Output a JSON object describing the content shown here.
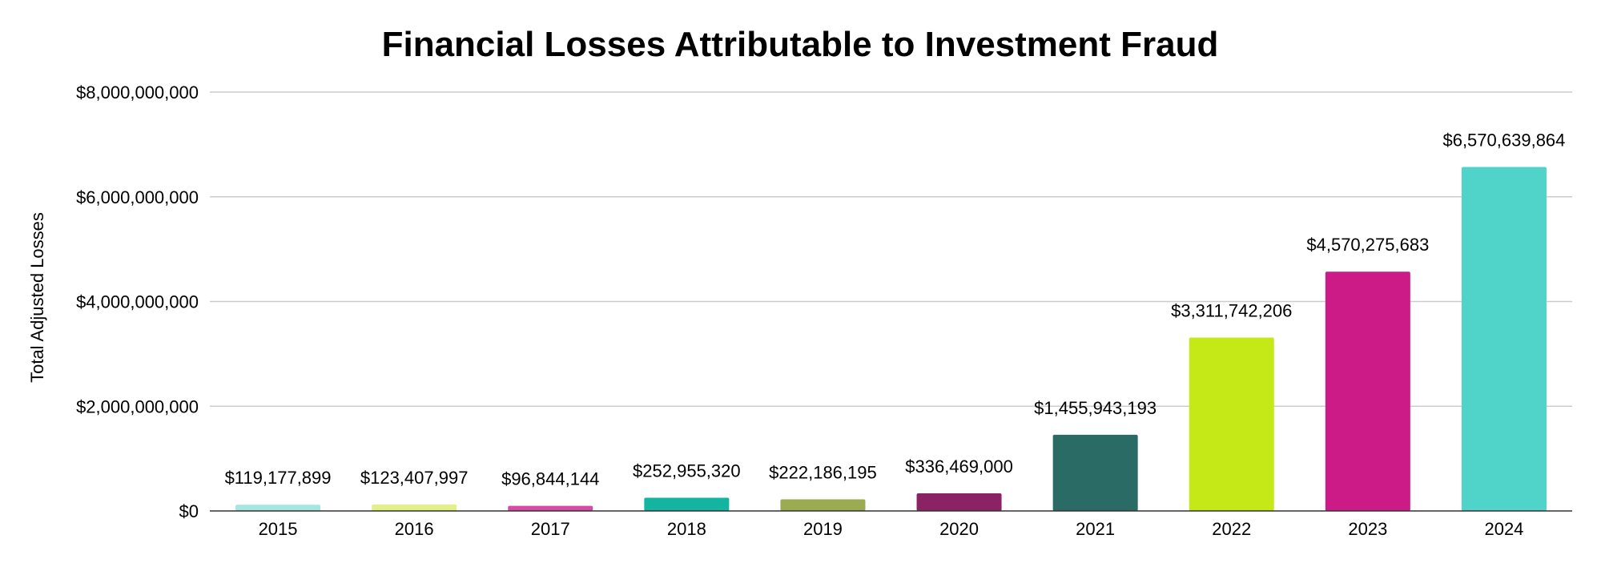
{
  "chart_data": {
    "type": "bar",
    "title": "Financial Losses Attributable to Investment Fraud",
    "xlabel": "",
    "ylabel": "Total Adjusted Losses",
    "categories": [
      "2015",
      "2016",
      "2017",
      "2018",
      "2019",
      "2020",
      "2021",
      "2022",
      "2023",
      "2024"
    ],
    "values": [
      119177899,
      123407997,
      96844144,
      252955320,
      222186195,
      336469000,
      1455943193,
      3311742206,
      4570275683,
      6570639864
    ],
    "value_labels": [
      "$119,177,899",
      "$123,407,997",
      "$96,844,144",
      "$252,955,320",
      "$222,186,195",
      "$336,469,000",
      "$1,455,943,193",
      "$3,311,742,206",
      "$4,570,275,683",
      "$6,570,639,864"
    ],
    "colors": [
      "#a6e6e0",
      "#e3f08a",
      "#d64ba6",
      "#13b5a0",
      "#9aab50",
      "#8b2263",
      "#2b6b66",
      "#c5e817",
      "#cc1a87",
      "#50d4c9"
    ],
    "ylim": [
      0,
      8000000000
    ],
    "yticks": [
      0,
      2000000000,
      4000000000,
      6000000000,
      8000000000
    ],
    "ytick_labels": [
      "$0",
      "$2,000,000,000",
      "$4,000,000,000",
      "$6,000,000,000",
      "$8,000,000,000"
    ],
    "grid": true,
    "legend": "none"
  }
}
